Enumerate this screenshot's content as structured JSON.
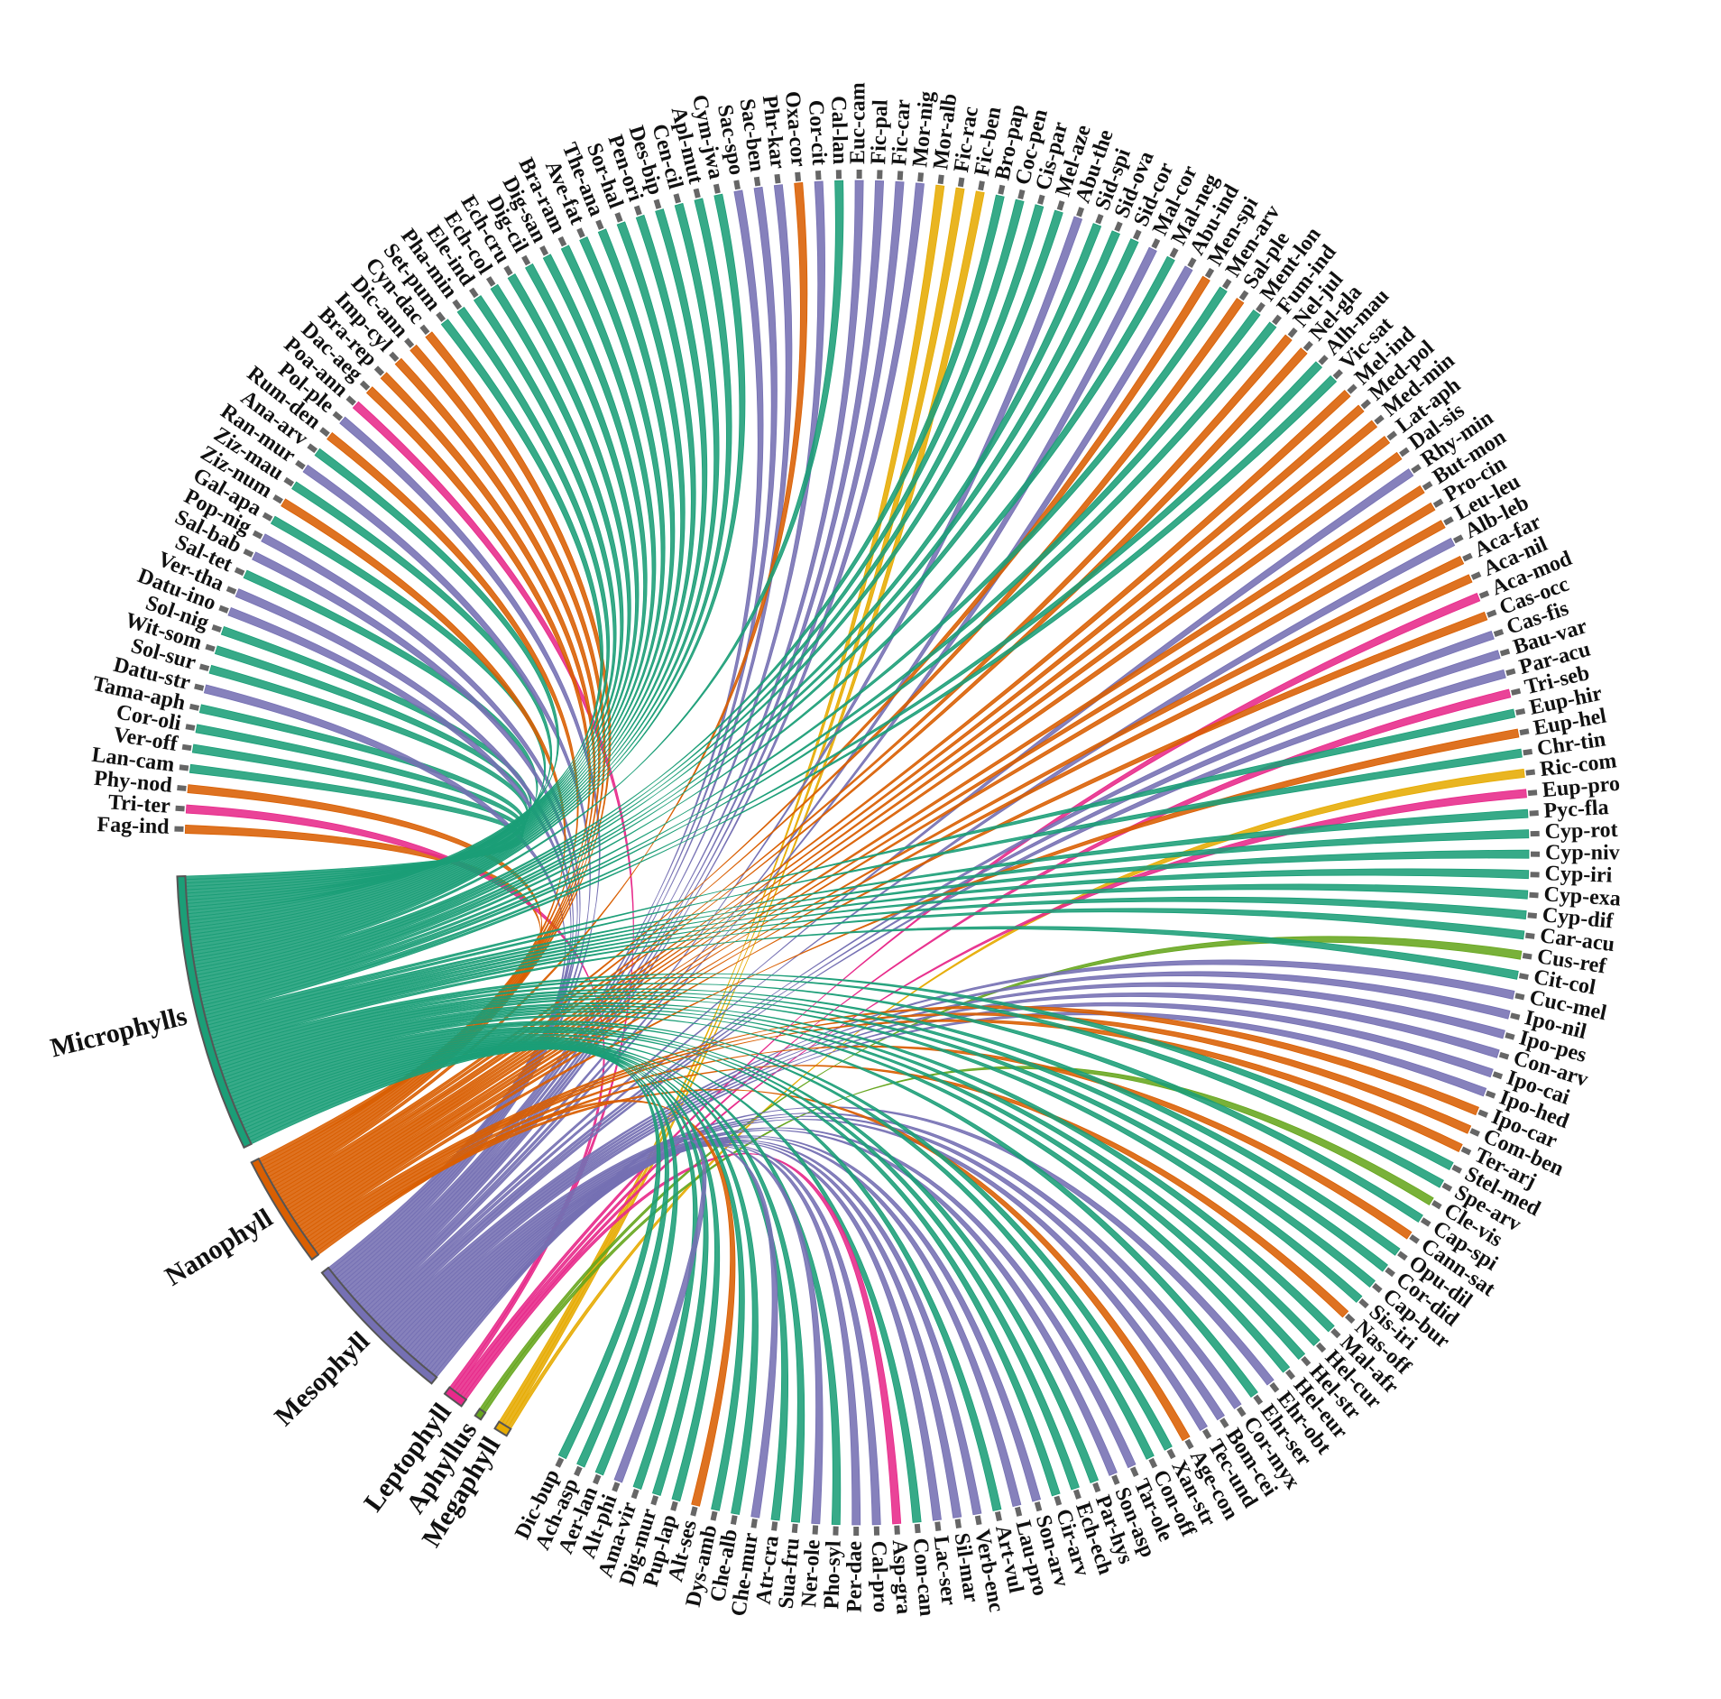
{
  "chart_data": {
    "type": "chord",
    "groups": [
      {
        "name": "Microphylls",
        "color": "#1b9e77"
      },
      {
        "name": "Nanophyll",
        "color": "#d95f02"
      },
      {
        "name": "Mesophyll",
        "color": "#7570b3"
      },
      {
        "name": "Leptophyll",
        "color": "#e7298a"
      },
      {
        "name": "Aphyllus",
        "color": "#66a61e"
      },
      {
        "name": "Megaphyll",
        "color": "#e6ab02"
      }
    ],
    "species": [
      "Fag-ind",
      "Tri-ter",
      "Phy-nod",
      "Lan-cam",
      "Ver-off",
      "Cor-oli",
      "Tama-aph",
      "Datu-str",
      "Sol-sur",
      "Wit-som",
      "Sol-nig",
      "Datu-ino",
      "Ver-tha",
      "Sal-tet",
      "Sal-bab",
      "Pop-nig",
      "Gal-apa",
      "Ziz-num",
      "Ziz-mau",
      "Ran-mur",
      "Ana-arv",
      "Rum-den",
      "Pol-ple",
      "Poa-ann",
      "Dac-aeg",
      "Bra-rep",
      "Imp-cyl",
      "Dic-ann",
      "Cyn-dac",
      "Set-pum",
      "Pha-min",
      "Ele-ind",
      "Ech-col",
      "Ech-cru",
      "Dig-cil",
      "Dig-san",
      "Bra-ram",
      "Ave-fat",
      "The-ana",
      "Sor-hal",
      "Pen-ori",
      "Des-bip",
      "Cen-cil",
      "Apl-mut",
      "Cym-jwa",
      "Sac-spo",
      "Sac-ben",
      "Phr-kar",
      "Oxa-cor",
      "Cor-cit",
      "Cal-lan",
      "Euc-cam",
      "Fic-pal",
      "Fic-car",
      "Mor-nig",
      "Mor-alb",
      "Fic-rac",
      "Fic-ben",
      "Bro-pap",
      "Coc-pen",
      "Cis-par",
      "Mel-aze",
      "Abu-the",
      "Sid-spi",
      "Sid-ova",
      "Sid-cor",
      "Mal-cor",
      "Mal-neg",
      "Abu-ind",
      "Men-spi",
      "Men-arv",
      "Sal-ple",
      "Ment-lon",
      "Fum-ind",
      "Nel-jul",
      "Nel-gla",
      "Alh-mau",
      "Vic-sat",
      "Mel-ind",
      "Med-pol",
      "Med-min",
      "Lat-aph",
      "Dal-sis",
      "Rhy-min",
      "But-mon",
      "Pro-cin",
      "Leu-leu",
      "Alb-leb",
      "Aca-far",
      "Aca-nil",
      "Aca-mod",
      "Cas-occ",
      "Cas-fis",
      "Bau-var",
      "Par-acu",
      "Tri-seb",
      "Eup-hir",
      "Eup-hel",
      "Chr-tin",
      "Ric-com",
      "Eup-pro",
      "Pyc-fla",
      "Cyp-rot",
      "Cyp-niv",
      "Cyp-iri",
      "Cyp-exa",
      "Cyp-dif",
      "Car-acu",
      "Cus-ref",
      "Cit-col",
      "Cuc-mel",
      "Ipo-nil",
      "Ipo-pes",
      "Con-arv",
      "Ipo-cai",
      "Ipo-hed",
      "Ipo-car",
      "Com-ben",
      "Ter-arj",
      "Stel-med",
      "Spe-arv",
      "Cle-vis",
      "Cap-spi",
      "Cann-sat",
      "Opu-dil",
      "Cor-did",
      "Cap-bur",
      "Sis-iri",
      "Nas-off",
      "Mal-afr",
      "Hel-cur",
      "Hel-str",
      "Hel-eur",
      "Ehr-obt",
      "Ehr-ser",
      "Cor-myx",
      "Bom-cei",
      "Tec-und",
      "Age-con",
      "Xan-str",
      "Con-off",
      "Tar-ole",
      "Son-asp",
      "Par-hys",
      "Ech-ech",
      "Cir-arv",
      "Son-arv",
      "Lau-pro",
      "Art-vul",
      "Verb-enc",
      "Sil-mar",
      "Lac-ser",
      "Con-can",
      "Asp-gra",
      "Cal-pro",
      "Per-dae",
      "Pho-syl",
      "Ner-ole",
      "Sua-fru",
      "Atr-cra",
      "Che-mur",
      "Che-alb",
      "Dys-amb",
      "Alt-ses",
      "Pup-lap",
      "Dig-mur",
      "Ama-vir",
      "Alt-phi",
      "Aer-lan",
      "Ach-asp",
      "Dic-bup"
    ],
    "leaf_class": [
      1,
      3,
      1,
      0,
      0,
      0,
      0,
      2,
      0,
      0,
      0,
      2,
      2,
      0,
      2,
      2,
      0,
      1,
      0,
      2,
      0,
      1,
      2,
      3,
      1,
      1,
      1,
      1,
      1,
      0,
      0,
      0,
      0,
      0,
      0,
      0,
      0,
      0,
      0,
      0,
      0,
      0,
      0,
      0,
      0,
      2,
      2,
      2,
      1,
      2,
      0,
      2,
      2,
      2,
      2,
      5,
      5,
      5,
      0,
      0,
      0,
      0,
      2,
      0,
      0,
      0,
      2,
      0,
      2,
      1,
      0,
      1,
      0,
      0,
      1,
      1,
      0,
      0,
      1,
      1,
      1,
      1,
      1,
      2,
      1,
      1,
      1,
      2,
      1,
      1,
      3,
      1,
      2,
      2,
      2,
      3,
      0,
      1,
      0,
      5,
      3,
      0,
      0,
      0,
      0,
      0,
      0,
      0,
      4,
      0,
      2,
      2,
      2,
      2,
      2,
      2,
      1,
      1,
      1,
      0,
      0,
      4,
      0,
      1,
      0,
      0,
      0,
      0,
      1,
      0,
      0,
      0,
      0,
      2,
      0,
      2,
      2,
      2,
      1,
      0,
      0,
      2,
      2,
      0,
      0,
      0,
      2,
      2,
      0,
      2,
      2,
      2,
      0,
      3,
      2,
      2,
      0,
      2,
      0,
      0,
      2,
      0,
      0,
      1,
      0,
      0,
      0,
      2,
      0,
      0,
      0
    ]
  }
}
